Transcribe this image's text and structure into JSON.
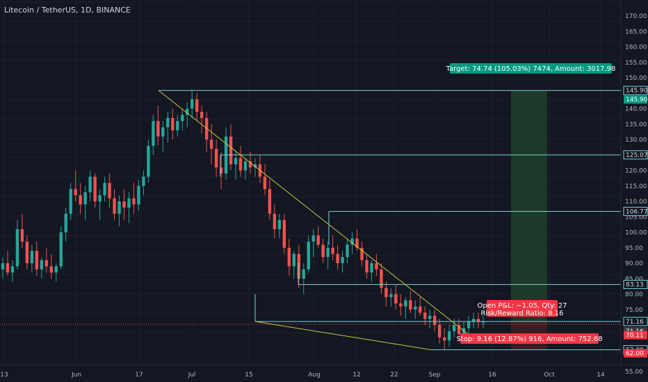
{
  "header": {
    "symbol_title": "Litecoin / TetherUS, 1D, BINANCE"
  },
  "colors": {
    "background": "#131722",
    "grid": "#1e222d",
    "axis_text": "#b2b5be",
    "up": "#26a69a",
    "down": "#ef5350",
    "level_line": "#7fd3d8",
    "trend_line": "#c8c83a",
    "target_zone": "#1b3a2a",
    "stop_zone": "#3c1b22",
    "target_label_bg": "#089981",
    "stop_label_bg": "#f23645"
  },
  "chart_data": {
    "type": "candlestick",
    "x_axis_labels": [
      "13",
      "Jun",
      "17",
      "Jul",
      "15",
      "Aug",
      "12",
      "22",
      "Sep",
      "16",
      "Oct",
      "14"
    ],
    "y_axis_ticks": [
      "170.00",
      "165.00",
      "160.00",
      "155.00",
      "150.00",
      "140.00",
      "135.00",
      "130.00",
      "120.00",
      "115.00",
      "110.00",
      "105.00",
      "100.00",
      "95.00",
      "90.00",
      "85.00",
      "80.00",
      "75.00",
      "55.00"
    ],
    "price_levels": [
      {
        "value": 145.9,
        "label": "145.90"
      },
      {
        "value": 125.07,
        "label": "125.07"
      },
      {
        "value": 106.77,
        "label": "106.77"
      },
      {
        "value": 83.13,
        "label": "83.13"
      },
      {
        "value": 71.16,
        "label": "71.16"
      },
      {
        "value": 62.0,
        "label": "62.00"
      }
    ],
    "price_badges": [
      {
        "label": "145.90",
        "value": 145.9,
        "style": "target"
      },
      {
        "label": "71.16",
        "value": 71.16,
        "style": "current"
      },
      {
        "label": "70.11",
        "value": 70.11,
        "style": "red"
      },
      {
        "label": "62.00",
        "value": 62.0,
        "style": "red"
      }
    ],
    "current_price": 71.16,
    "annotations": {
      "target": "Target: 74.74 (105.03%) 7474, Amount: 3017.98",
      "open_pnl": "Open P&L: −1.05, Qty: 27",
      "risk_reward": "Risk/Reward Ratio: 8.16",
      "stop": "Stop: 9.16 (12.87%) 916, Amount: 752.68"
    },
    "candles": [
      [
        88,
        92,
        85,
        90
      ],
      [
        90,
        94,
        86,
        87
      ],
      [
        87,
        91,
        84,
        89
      ],
      [
        89,
        104,
        88,
        101
      ],
      [
        101,
        106,
        95,
        97
      ],
      [
        97,
        99,
        88,
        90
      ],
      [
        90,
        96,
        87,
        94
      ],
      [
        94,
        97,
        86,
        88
      ],
      [
        88,
        92,
        85,
        91
      ],
      [
        91,
        95,
        87,
        89
      ],
      [
        89,
        93,
        85,
        87
      ],
      [
        87,
        90,
        84,
        89
      ],
      [
        89,
        102,
        88,
        100
      ],
      [
        100,
        108,
        97,
        106
      ],
      [
        106,
        116,
        104,
        114
      ],
      [
        114,
        120,
        110,
        112
      ],
      [
        112,
        116,
        106,
        109
      ],
      [
        109,
        115,
        104,
        113
      ],
      [
        113,
        120,
        110,
        118
      ],
      [
        118,
        119,
        108,
        110
      ],
      [
        110,
        114,
        104,
        112
      ],
      [
        112,
        118,
        110,
        116
      ],
      [
        116,
        119,
        108,
        111
      ],
      [
        111,
        114,
        104,
        106
      ],
      [
        106,
        112,
        102,
        110
      ],
      [
        110,
        114,
        104,
        108
      ],
      [
        108,
        113,
        103,
        111
      ],
      [
        111,
        116,
        106,
        109
      ],
      [
        109,
        117,
        107,
        115
      ],
      [
        115,
        120,
        112,
        118
      ],
      [
        118,
        130,
        116,
        128
      ],
      [
        128,
        138,
        125,
        136
      ],
      [
        136,
        141,
        128,
        131
      ],
      [
        131,
        136,
        126,
        134
      ],
      [
        134,
        139,
        129,
        137
      ],
      [
        137,
        140,
        130,
        133
      ],
      [
        133,
        138,
        131,
        136
      ],
      [
        136,
        140,
        133,
        138
      ],
      [
        138,
        142,
        134,
        140
      ],
      [
        140,
        146,
        137,
        143
      ],
      [
        143,
        145,
        136,
        139
      ],
      [
        139,
        141,
        132,
        137
      ],
      [
        137,
        139,
        126,
        130
      ],
      [
        130,
        135,
        122,
        127
      ],
      [
        127,
        130,
        118,
        121
      ],
      [
        121,
        126,
        114,
        119
      ],
      [
        119,
        134,
        117,
        131
      ],
      [
        131,
        135,
        120,
        122
      ],
      [
        122,
        126,
        117,
        124
      ],
      [
        124,
        128,
        118,
        120
      ],
      [
        120,
        124,
        117,
        123
      ],
      [
        123,
        126,
        119,
        121
      ],
      [
        121,
        124,
        118,
        122
      ],
      [
        122,
        125,
        116,
        118
      ],
      [
        118,
        122,
        112,
        114
      ],
      [
        114,
        117,
        104,
        106
      ],
      [
        106,
        109,
        98,
        101
      ],
      [
        101,
        106,
        98,
        104
      ],
      [
        104,
        106,
        93,
        95
      ],
      [
        95,
        98,
        86,
        89
      ],
      [
        89,
        94,
        85,
        93
      ],
      [
        93,
        96,
        82,
        85
      ],
      [
        85,
        90,
        80,
        88
      ],
      [
        88,
        99,
        87,
        97
      ],
      [
        97,
        101,
        92,
        99
      ],
      [
        99,
        102,
        95,
        96
      ],
      [
        96,
        98,
        90,
        92
      ],
      [
        92,
        97,
        88,
        95
      ],
      [
        95,
        99,
        91,
        93
      ],
      [
        93,
        96,
        88,
        90
      ],
      [
        90,
        94,
        87,
        92
      ],
      [
        92,
        98,
        90,
        96
      ],
      [
        96,
        100,
        93,
        98
      ],
      [
        98,
        101,
        94,
        95
      ],
      [
        95,
        97,
        89,
        91
      ],
      [
        91,
        93,
        85,
        87
      ],
      [
        87,
        91,
        84,
        90
      ],
      [
        90,
        93,
        86,
        88
      ],
      [
        88,
        90,
        80,
        82
      ],
      [
        82,
        84,
        76,
        79
      ],
      [
        79,
        82,
        76,
        80
      ],
      [
        80,
        83,
        75,
        77
      ],
      [
        77,
        80,
        73,
        76
      ],
      [
        76,
        79,
        72,
        78
      ],
      [
        78,
        81,
        74,
        75
      ],
      [
        75,
        78,
        72,
        76
      ],
      [
        76,
        79,
        73,
        74
      ],
      [
        74,
        76,
        70,
        72
      ],
      [
        72,
        75,
        69,
        73
      ],
      [
        73,
        75,
        68,
        70
      ],
      [
        70,
        72,
        64,
        66
      ],
      [
        66,
        69,
        62,
        65
      ],
      [
        65,
        70,
        63,
        68
      ],
      [
        68,
        72,
        66,
        70
      ],
      [
        70,
        72,
        65,
        67
      ],
      [
        67,
        71,
        64,
        69
      ],
      [
        69,
        73,
        67,
        71
      ],
      [
        71,
        74,
        69,
        72
      ],
      [
        72,
        74,
        69,
        71
      ],
      [
        71,
        73,
        69,
        71
      ]
    ]
  }
}
